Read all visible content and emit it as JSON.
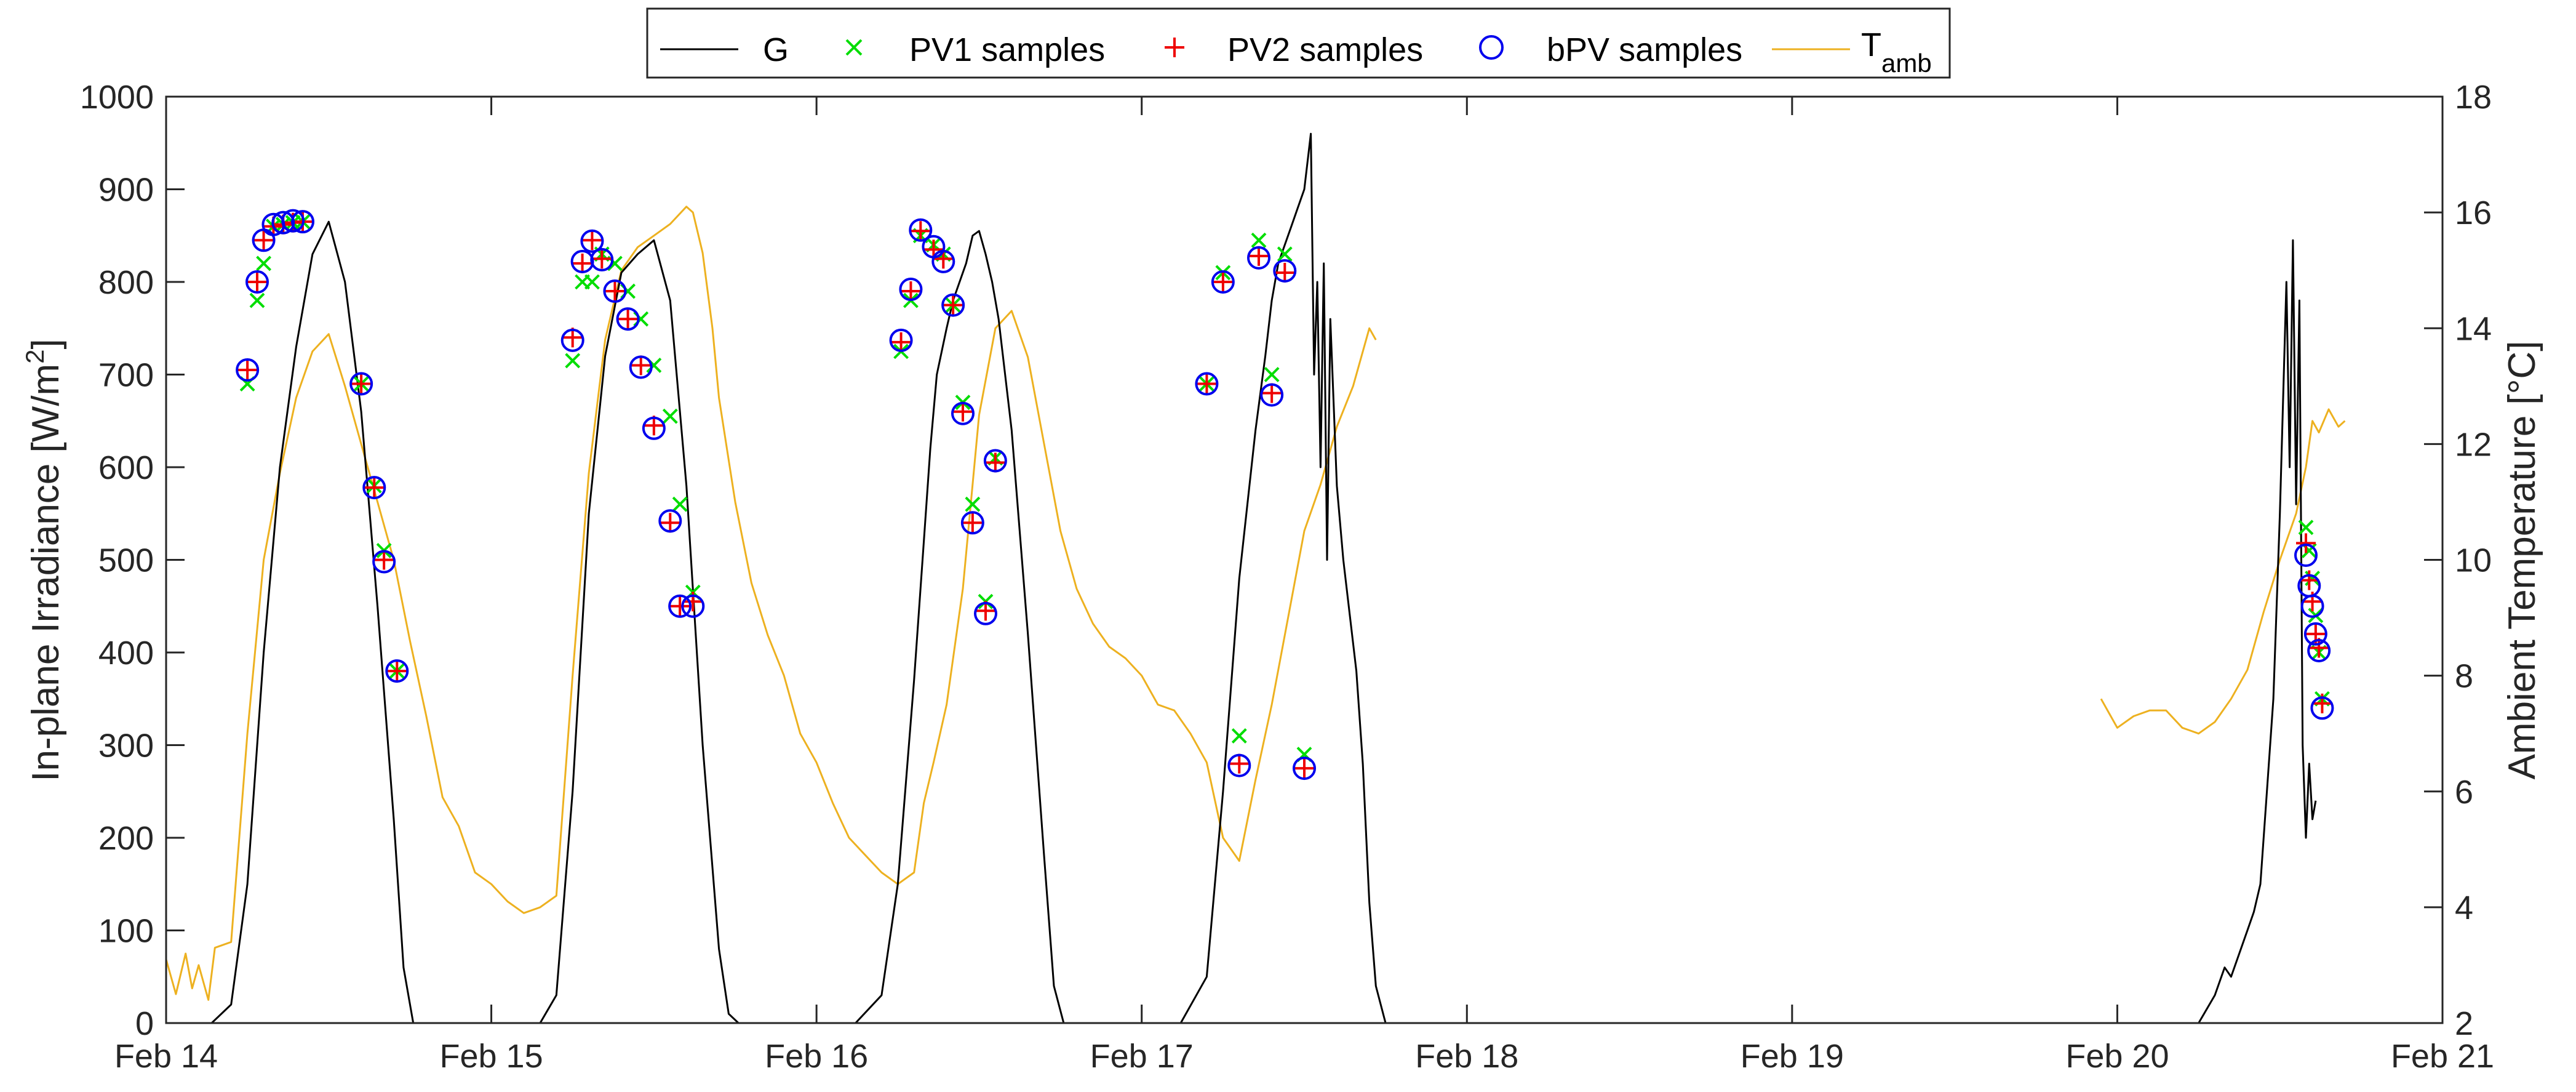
{
  "chart_data": {
    "type": "line",
    "x_categories": [
      "Feb 14",
      "Feb 15",
      "Feb 16",
      "Feb 17",
      "Feb 18",
      "Feb 19",
      "Feb 20",
      "Feb 21"
    ],
    "xlim": [
      14,
      21
    ],
    "y_left": {
      "label": "In-plane Irradiance [W/m",
      "label_sup": "2",
      "label_end": "]",
      "ylim": [
        0,
        1000
      ],
      "ticks": [
        "0",
        "100",
        "200",
        "300",
        "400",
        "500",
        "600",
        "700",
        "800",
        "900",
        "1000"
      ]
    },
    "y_right": {
      "label": "Ambient Temperature [°C]",
      "ylim": [
        2,
        18
      ],
      "ticks": [
        "2",
        "4",
        "6",
        "8",
        "10",
        "12",
        "14",
        "16",
        "18"
      ]
    },
    "legend": {
      "position": "top-center",
      "entries": [
        {
          "name": "G",
          "marker": "line"
        },
        {
          "name": "PV1 samples",
          "marker": "x"
        },
        {
          "name": "PV2 samples",
          "marker": "+"
        },
        {
          "name": "bPV samples",
          "marker": "o"
        },
        {
          "name": "T",
          "sub": "amb",
          "marker": "line"
        }
      ]
    },
    "colors": {
      "G": "#000000",
      "PV1": "#00dd00",
      "PV2": "#ee0000",
      "bPV": "#0000ee",
      "Tamb": "#edb120"
    },
    "series": [
      {
        "name": "G",
        "axis": "left",
        "x": [
          14.0,
          14.14,
          14.2,
          14.25,
          14.3,
          14.35,
          14.4,
          14.45,
          14.5,
          14.55,
          14.6,
          14.65,
          14.7,
          14.73,
          14.76,
          15.0,
          15.15,
          15.2,
          15.25,
          15.3,
          15.35,
          15.4,
          15.45,
          15.5,
          15.55,
          15.6,
          15.65,
          15.7,
          15.73,
          15.76,
          16.0,
          16.12,
          16.2,
          16.25,
          16.3,
          16.33,
          16.35,
          16.37,
          16.4,
          16.42,
          16.44,
          16.46,
          16.48,
          16.5,
          16.52,
          16.54,
          16.56,
          16.6,
          16.65,
          16.7,
          16.73,
          16.76,
          17.0,
          17.12,
          17.2,
          17.25,
          17.3,
          17.35,
          17.38,
          17.4,
          17.42,
          17.44,
          17.46,
          17.48,
          17.5,
          17.52,
          17.53,
          17.54,
          17.55,
          17.56,
          17.57,
          17.58,
          17.6,
          17.62,
          17.64,
          17.66,
          17.68,
          17.7,
          17.72,
          17.75,
          20.25,
          20.3,
          20.33,
          20.35,
          20.38,
          20.4,
          20.42,
          20.44,
          20.46,
          20.48,
          20.5,
          20.52,
          20.53,
          20.54,
          20.55,
          20.56,
          20.57,
          20.58,
          20.59,
          20.6,
          20.61
        ],
        "y": [
          0,
          0,
          20,
          150,
          400,
          600,
          730,
          830,
          865,
          800,
          660,
          450,
          220,
          60,
          0,
          0,
          0,
          30,
          250,
          550,
          720,
          810,
          830,
          845,
          780,
          580,
          300,
          80,
          10,
          0,
          0,
          0,
          30,
          150,
          370,
          520,
          620,
          700,
          750,
          780,
          800,
          820,
          850,
          855,
          830,
          800,
          760,
          640,
          420,
          180,
          40,
          0,
          0,
          0,
          50,
          250,
          480,
          640,
          720,
          780,
          820,
          840,
          860,
          880,
          900,
          960,
          700,
          800,
          600,
          820,
          500,
          760,
          580,
          500,
          440,
          380,
          280,
          130,
          40,
          0,
          0,
          30,
          60,
          50,
          80,
          100,
          120,
          150,
          250,
          350,
          550,
          800,
          600,
          845,
          560,
          780,
          300,
          200,
          280,
          220,
          240
        ]
      },
      {
        "name": "PV1 samples",
        "axis": "left",
        "marker": "x",
        "x": [
          14.25,
          14.28,
          14.3,
          14.33,
          14.36,
          14.39,
          14.42,
          14.6,
          14.64,
          14.67,
          14.71,
          15.25,
          15.28,
          15.31,
          15.34,
          15.38,
          15.42,
          15.46,
          15.5,
          15.55,
          15.58,
          15.62,
          16.26,
          16.29,
          16.32,
          16.36,
          16.39,
          16.42,
          16.45,
          16.48,
          16.52,
          16.55,
          17.2,
          17.25,
          17.3,
          17.36,
          17.4,
          17.44,
          17.5,
          20.58,
          20.59,
          20.6,
          20.61,
          20.62,
          20.63
        ],
        "y": [
          690,
          780,
          820,
          860,
          862,
          864,
          865,
          690,
          580,
          510,
          380,
          715,
          800,
          800,
          830,
          820,
          790,
          760,
          710,
          655,
          560,
          465,
          725,
          780,
          850,
          840,
          830,
          775,
          670,
          560,
          455,
          610,
          690,
          810,
          310,
          845,
          700,
          830,
          290,
          535,
          510,
          480,
          440,
          400,
          350
        ]
      },
      {
        "name": "PV2 samples",
        "axis": "left",
        "marker": "+",
        "x": [
          14.25,
          14.28,
          14.3,
          14.33,
          14.36,
          14.39,
          14.42,
          14.6,
          14.64,
          14.67,
          14.71,
          15.25,
          15.28,
          15.31,
          15.34,
          15.38,
          15.42,
          15.46,
          15.5,
          15.55,
          15.58,
          15.62,
          16.26,
          16.29,
          16.32,
          16.36,
          16.39,
          16.42,
          16.45,
          16.48,
          16.52,
          16.55,
          17.2,
          17.25,
          17.3,
          17.36,
          17.4,
          17.44,
          17.5,
          20.58,
          20.59,
          20.6,
          20.61,
          20.62,
          20.63
        ],
        "y": [
          705,
          800,
          845,
          860,
          862,
          864,
          865,
          690,
          578,
          500,
          380,
          740,
          820,
          845,
          825,
          790,
          760,
          710,
          645,
          540,
          450,
          455,
          735,
          790,
          855,
          835,
          825,
          775,
          660,
          540,
          445,
          605,
          690,
          800,
          280,
          828,
          680,
          810,
          275,
          518,
          478,
          455,
          420,
          405,
          345
        ]
      },
      {
        "name": "bPV samples",
        "axis": "left",
        "marker": "o",
        "x": [
          14.25,
          14.28,
          14.3,
          14.33,
          14.36,
          14.39,
          14.42,
          14.6,
          14.64,
          14.67,
          14.71,
          15.25,
          15.28,
          15.31,
          15.34,
          15.38,
          15.42,
          15.46,
          15.5,
          15.55,
          15.58,
          15.62,
          16.26,
          16.29,
          16.32,
          16.36,
          16.39,
          16.42,
          16.45,
          16.48,
          16.52,
          16.55,
          17.2,
          17.25,
          17.3,
          17.36,
          17.4,
          17.44,
          17.5,
          20.58,
          20.59,
          20.6,
          20.61,
          20.62,
          20.63
        ],
        "y": [
          705,
          800,
          845,
          862,
          864,
          866,
          865,
          690,
          578,
          498,
          380,
          737,
          822,
          844,
          824,
          790,
          760,
          708,
          642,
          542,
          450,
          450,
          737,
          792,
          856,
          838,
          822,
          775,
          658,
          540,
          442,
          607,
          690,
          800,
          278,
          826,
          678,
          812,
          275,
          505,
          472,
          450,
          420,
          402,
          340
        ]
      },
      {
        "name": "Tamb",
        "axis": "right",
        "x": [
          14.0,
          14.03,
          14.06,
          14.08,
          14.1,
          14.13,
          14.15,
          14.2,
          14.25,
          14.3,
          14.35,
          14.4,
          14.45,
          14.5,
          14.55,
          14.6,
          14.65,
          14.7,
          14.75,
          14.8,
          14.85,
          14.9,
          14.95,
          15.0,
          15.05,
          15.1,
          15.15,
          15.2,
          15.25,
          15.3,
          15.35,
          15.4,
          15.45,
          15.5,
          15.55,
          15.6,
          15.62,
          15.65,
          15.68,
          15.7,
          15.75,
          15.8,
          15.85,
          15.9,
          15.95,
          16.0,
          16.05,
          16.1,
          16.15,
          16.2,
          16.25,
          16.3,
          16.33,
          16.36,
          16.4,
          16.45,
          16.5,
          16.55,
          16.6,
          16.65,
          16.7,
          16.75,
          16.8,
          16.85,
          16.9,
          16.95,
          17.0,
          17.05,
          17.1,
          17.15,
          17.2,
          17.25,
          17.3,
          17.35,
          17.4,
          17.45,
          17.5,
          17.55,
          17.6,
          17.65,
          17.7,
          17.72,
          19.95,
          20.0,
          20.05,
          20.1,
          20.15,
          20.2,
          20.25,
          20.3,
          20.35,
          20.4,
          20.45,
          20.5,
          20.55,
          20.58,
          20.6,
          20.62,
          20.65,
          20.68,
          20.7
        ],
        "y": [
          3.1,
          2.5,
          3.2,
          2.6,
          3.0,
          2.4,
          3.3,
          3.4,
          7.0,
          10.0,
          11.5,
          12.8,
          13.6,
          13.9,
          13.0,
          12.0,
          11.0,
          10.0,
          8.6,
          7.3,
          5.9,
          5.4,
          4.6,
          4.4,
          4.1,
          3.9,
          4.0,
          4.2,
          8.0,
          11.5,
          13.8,
          15.0,
          15.4,
          15.6,
          15.8,
          16.1,
          16.0,
          15.3,
          14.0,
          12.8,
          11.0,
          9.6,
          8.7,
          8.0,
          7.0,
          6.5,
          5.8,
          5.2,
          4.9,
          4.6,
          4.4,
          4.6,
          5.8,
          6.5,
          7.5,
          9.5,
          12.5,
          14.0,
          14.3,
          13.5,
          12.0,
          10.5,
          9.5,
          8.9,
          8.5,
          8.3,
          8.0,
          7.5,
          7.4,
          7.0,
          6.5,
          5.2,
          4.8,
          6.2,
          7.5,
          9.0,
          10.5,
          11.3,
          12.3,
          13.0,
          14.0,
          13.8,
          7.6,
          7.1,
          7.3,
          7.4,
          7.4,
          7.1,
          7.0,
          7.2,
          7.6,
          8.1,
          9.1,
          10.0,
          10.8,
          11.6,
          12.4,
          12.2,
          12.6,
          12.3,
          12.4
        ]
      }
    ]
  }
}
